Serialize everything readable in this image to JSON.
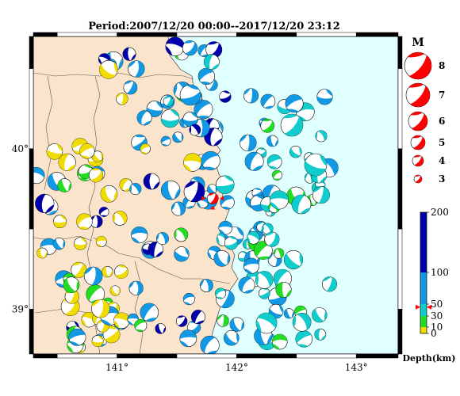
{
  "title": "Period:2007/12/20 00:00--2017/12/20 23:12",
  "map": {
    "lon_range": [
      140.3,
      143.35
    ],
    "lat_range": [
      38.72,
      40.7
    ],
    "lon_ticks": [
      {
        "value": 141,
        "label": "141°"
      },
      {
        "value": 142,
        "label": "142°"
      },
      {
        "value": 143,
        "label": "143°"
      }
    ],
    "lat_ticks": [
      {
        "value": 40,
        "label": "40°"
      },
      {
        "value": 39,
        "label": "39°"
      }
    ],
    "colors": {
      "land": "#fbe4cc",
      "sea": "#e0ffff",
      "depth_0_10": "#f0dc00",
      "depth_10_30": "#22dd22",
      "depth_30_50": "#11cccc",
      "depth_50_100": "#1199e6",
      "depth_100_200": "#0000aa",
      "highlight": "#ff0000"
    },
    "highlight_event": {
      "lon": 141.8,
      "lat": 39.69,
      "mag": 4.5,
      "depth": 45
    }
  },
  "magnitude_legend": {
    "title": "M",
    "items": [
      {
        "mag": 8,
        "label": "8"
      },
      {
        "mag": 7,
        "label": "7"
      },
      {
        "mag": 6,
        "label": "6"
      },
      {
        "mag": 5,
        "label": "5"
      },
      {
        "mag": 4,
        "label": "4"
      },
      {
        "mag": 3,
        "label": "3"
      }
    ]
  },
  "depth_scale": {
    "label": "Depth(km)",
    "ticks": [
      {
        "value": 200,
        "label": "200"
      },
      {
        "value": 100,
        "label": "100"
      },
      {
        "value": 50,
        "label": "50"
      },
      {
        "value": 30,
        "label": "30"
      },
      {
        "value": 10,
        "label": "10"
      },
      {
        "value": 0,
        "label": "0"
      }
    ],
    "marker_value": 45
  }
}
